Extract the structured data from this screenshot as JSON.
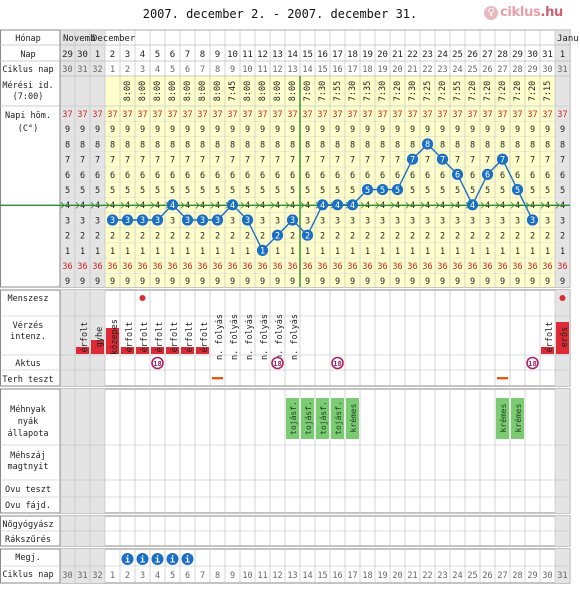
{
  "title": "2007. december 2. - 2007. december 31.",
  "logo": {
    "text": "ciklus",
    "tld": ".hu"
  },
  "months": [
    "Novemb",
    "December",
    "Janu"
  ],
  "labels": {
    "month": "Hónap",
    "day": "Nap",
    "cycle_day": "Ciklus nap",
    "measure_1": "Mérési id.",
    "measure_2": "(7:00)",
    "temp_1": "Napi höm.",
    "temp_2": "(C°)",
    "menses": "Menszesz",
    "bleeding_1": "Vérzés",
    "bleeding_2": "intenz.",
    "intercourse": "Aktus",
    "pregnancy_test": "Terh teszt",
    "mucus_1": "Méhnyak",
    "mucus_2": "nyák",
    "mucus_3": "állapota",
    "cervix_1": "Méhszáj",
    "cervix_2": "magtnyit",
    "ovu_test": "Ovu teszt",
    "ovu_pain": "Ovu fájd.",
    "gyn": "Nőgyógyász",
    "screening": "Rákszűrés",
    "notes": "Megj.",
    "cycle_day_bottom": "Ciklus nap"
  },
  "chart_data": {
    "type": "line",
    "title": "2007. december 2. - 2007. december 31.",
    "xlabel": "Nap",
    "ylabel": "Napi höm. (C°)",
    "days": [
      "29",
      "30",
      "1",
      "2",
      "3",
      "4",
      "5",
      "6",
      "7",
      "8",
      "9",
      "10",
      "11",
      "12",
      "13",
      "14",
      "15",
      "16",
      "17",
      "18",
      "19",
      "20",
      "21",
      "22",
      "23",
      "24",
      "25",
      "26",
      "27",
      "28",
      "29",
      "30",
      "31",
      "1"
    ],
    "cycle_days": [
      "30",
      "31",
      "32",
      "1",
      "2",
      "3",
      "4",
      "5",
      "6",
      "7",
      "8",
      "9",
      "10",
      "11",
      "12",
      "13",
      "14",
      "15",
      "16",
      "17",
      "18",
      "19",
      "20",
      "21",
      "22",
      "23",
      "24",
      "25",
      "26",
      "27",
      "28",
      "29",
      "30",
      "31"
    ],
    "measure_times": [
      "",
      "",
      "",
      "",
      "8:00",
      "8:00",
      "8:00",
      "8:00",
      "8:00",
      "8:00",
      "8:00",
      "7:45",
      "8:00",
      "8:00",
      "8:00",
      "8:00",
      "7:00",
      "7:30",
      "7:55",
      "7:30",
      "7:35",
      "7:30",
      "7:20",
      "7:30",
      "7:25",
      "7:20",
      "7:55",
      "7:20",
      "7:20",
      "7:20",
      "7:20",
      "7:20",
      "7:15",
      ""
    ],
    "temp_scale": [
      "37",
      "9",
      "8",
      "7",
      "6",
      "5",
      "4",
      "3",
      "2",
      "1",
      "36",
      "9"
    ],
    "series": [
      {
        "values": [
          null,
          null,
          null,
          36.3,
          36.3,
          36.3,
          36.3,
          36.4,
          36.3,
          36.3,
          36.3,
          36.4,
          36.3,
          36.1,
          36.2,
          36.3,
          36.2,
          36.4,
          36.4,
          36.4,
          36.5,
          36.5,
          36.5,
          36.7,
          36.8,
          36.7,
          36.6,
          36.4,
          36.6,
          36.7,
          36.5,
          36.3,
          null,
          null
        ]
      }
    ],
    "coverline": 36.4,
    "ylim": [
      35.9,
      37.0
    ],
    "grid": true
  },
  "menses_markers": [
    "",
    "",
    "",
    "",
    "",
    "●",
    "",
    "",
    "",
    "",
    "",
    "",
    "",
    "",
    "",
    "",
    "",
    "",
    "",
    "",
    "",
    "",
    "",
    "",
    "",
    "",
    "",
    "",
    "",
    "",
    "",
    "",
    "",
    "●"
  ],
  "bleeding": [
    {
      "text": "",
      "level": 0
    },
    {
      "text": "érfolt",
      "level": 1
    },
    {
      "text": "gyhe",
      "level": 2
    },
    {
      "text": "közepes",
      "level": 3
    },
    {
      "text": "érfolt",
      "level": 1
    },
    {
      "text": "érfolt",
      "level": 1
    },
    {
      "text": "érfolt",
      "level": 1
    },
    {
      "text": "érfolt",
      "level": 1
    },
    {
      "text": "érfolt",
      "level": 1
    },
    {
      "text": "érfolt",
      "level": 1
    },
    {
      "text": "n. folyás",
      "level": 0
    },
    {
      "text": "n. folyás",
      "level": 0
    },
    {
      "text": "n. folyás",
      "level": 0
    },
    {
      "text": "n. folyás",
      "level": 0
    },
    {
      "text": "n. folyás",
      "level": 0
    },
    {
      "text": "n. folyás",
      "level": 0
    },
    {
      "text": "",
      "level": 0
    },
    {
      "text": "",
      "level": 0
    },
    {
      "text": "",
      "level": 0
    },
    {
      "text": "",
      "level": 0
    },
    {
      "text": "",
      "level": 0
    },
    {
      "text": "",
      "level": 0
    },
    {
      "text": "",
      "level": 0
    },
    {
      "text": "",
      "level": 0
    },
    {
      "text": "",
      "level": 0
    },
    {
      "text": "",
      "level": 0
    },
    {
      "text": "",
      "level": 0
    },
    {
      "text": "",
      "level": 0
    },
    {
      "text": "",
      "level": 0
    },
    {
      "text": "",
      "level": 0
    },
    {
      "text": "",
      "level": 0
    },
    {
      "text": "",
      "level": 0
    },
    {
      "text": "érfolt",
      "level": 1
    },
    {
      "text": "erős",
      "level": 4
    }
  ],
  "intercourse_mark": "18",
  "intercourse_days": [
    6,
    14,
    18,
    31
  ],
  "pregnancy_test_days": [
    10,
    29
  ],
  "mucus": [
    {
      "day": 15,
      "text": "tojásf."
    },
    {
      "day": 16,
      "text": "tojásf."
    },
    {
      "day": 17,
      "text": "tojásf."
    },
    {
      "day": 18,
      "text": "tojásf."
    },
    {
      "day": 19,
      "text": "krémes"
    },
    {
      "day": 29,
      "text": "krémes"
    },
    {
      "day": 30,
      "text": "krémes"
    }
  ],
  "notes_mark": "i",
  "notes_days": [
    4,
    5,
    6,
    7,
    8
  ],
  "colors": {
    "grid": "#bbbbbb",
    "yellow": "#ffffcc",
    "gray": "#e4e4e4",
    "red": "#cc2222",
    "blue": "#1a6fc4",
    "green": "#2e8b2e",
    "orange": "#ee5511",
    "purple": "#aa2266",
    "mucus": "#7acb72",
    "bleed": "#dd2a35"
  }
}
